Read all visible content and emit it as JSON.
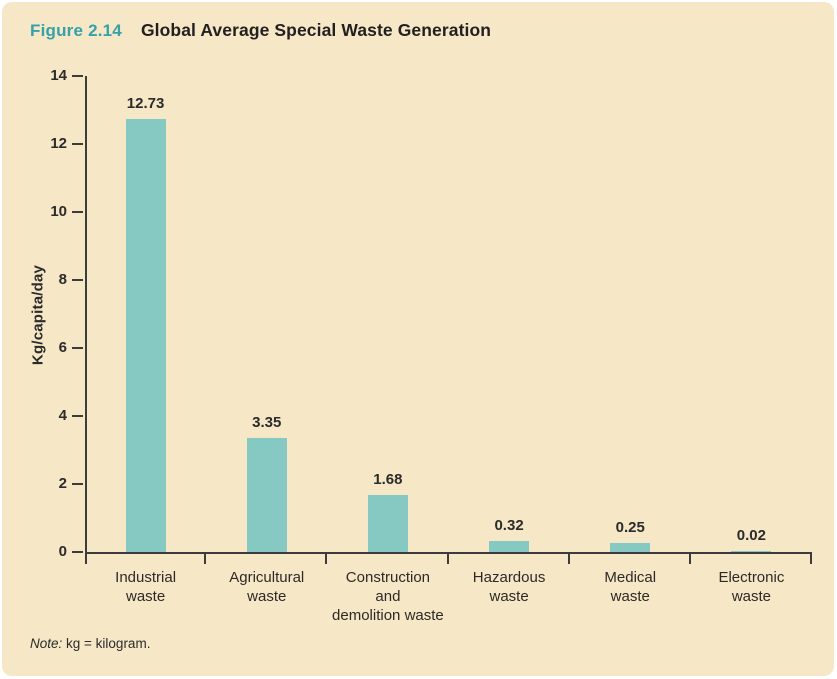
{
  "figure": {
    "label": "Figure 2.14",
    "title": "Global Average Special Waste Generation"
  },
  "note": {
    "prefix": "Note:",
    "text": " kg = kilogram."
  },
  "colors": {
    "panel_background": "#f6e7c6",
    "bar_fill": "#86c8c2",
    "figure_label_teal": "#35a1aa",
    "title_text": "#231f20",
    "axis_line": "#3c3c3c",
    "tick_text": "#2b2b2b"
  },
  "chart_data": {
    "type": "bar",
    "title": "Global Average Special Waste Generation",
    "categories": [
      "Industrial\nwaste",
      "Agricultural\nwaste",
      "Construction\nand\ndemolition waste",
      "Hazardous\nwaste",
      "Medical\nwaste",
      "Electronic\nwaste"
    ],
    "values": [
      12.73,
      3.35,
      1.68,
      0.32,
      0.25,
      0.02
    ],
    "value_labels": [
      "12.73",
      "3.35",
      "1.68",
      "0.32",
      "0.25",
      "0.02"
    ],
    "xlabel": "",
    "ylabel": "Kg/capita/day",
    "ylim": [
      0,
      14
    ],
    "yticks": [
      0,
      2,
      4,
      6,
      8,
      10,
      12,
      14
    ],
    "grid": false,
    "legend": false
  }
}
